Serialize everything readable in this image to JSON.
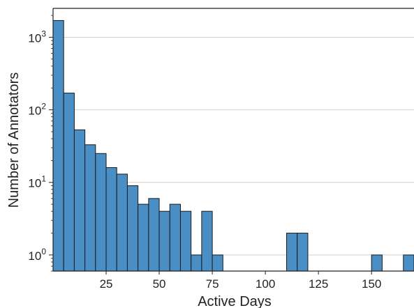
{
  "chart_data": {
    "type": "bar",
    "subtype": "histogram",
    "xlabel": "Active Days",
    "ylabel": "Number of Annotators",
    "y_scale": "log",
    "xlim": [
      0,
      170
    ],
    "ylim": [
      0.6,
      2500
    ],
    "grid": "horizontal at major decades",
    "bin_width": 5,
    "bar_color": "#4a8ec6",
    "edge_color": "#1a1a1a",
    "x_ticks": [
      25,
      50,
      75,
      100,
      125,
      150
    ],
    "x_tick_labels": [
      "25",
      "50",
      "75",
      "100",
      "125",
      "150"
    ],
    "y_ticks": [
      {
        "value": 1,
        "base": "10",
        "exp": "0"
      },
      {
        "value": 10,
        "base": "10",
        "exp": "1"
      },
      {
        "value": 100,
        "base": "10",
        "exp": "2"
      },
      {
        "value": 1000,
        "base": "10",
        "exp": "3"
      }
    ],
    "bins": [
      {
        "x0": 0,
        "x1": 5,
        "count": 1700
      },
      {
        "x0": 5,
        "x1": 10,
        "count": 170
      },
      {
        "x0": 10,
        "x1": 15,
        "count": 53
      },
      {
        "x0": 15,
        "x1": 20,
        "count": 33
      },
      {
        "x0": 20,
        "x1": 25,
        "count": 25
      },
      {
        "x0": 25,
        "x1": 30,
        "count": 16
      },
      {
        "x0": 30,
        "x1": 35,
        "count": 13
      },
      {
        "x0": 35,
        "x1": 40,
        "count": 9
      },
      {
        "x0": 40,
        "x1": 45,
        "count": 5
      },
      {
        "x0": 45,
        "x1": 50,
        "count": 6
      },
      {
        "x0": 50,
        "x1": 55,
        "count": 4
      },
      {
        "x0": 55,
        "x1": 60,
        "count": 5
      },
      {
        "x0": 60,
        "x1": 65,
        "count": 4
      },
      {
        "x0": 65,
        "x1": 70,
        "count": 1
      },
      {
        "x0": 70,
        "x1": 75,
        "count": 4
      },
      {
        "x0": 75,
        "x1": 80,
        "count": 1
      },
      {
        "x0": 110,
        "x1": 115,
        "count": 2
      },
      {
        "x0": 115,
        "x1": 120,
        "count": 2
      },
      {
        "x0": 150,
        "x1": 155,
        "count": 1
      },
      {
        "x0": 165,
        "x1": 170,
        "count": 1
      }
    ]
  }
}
